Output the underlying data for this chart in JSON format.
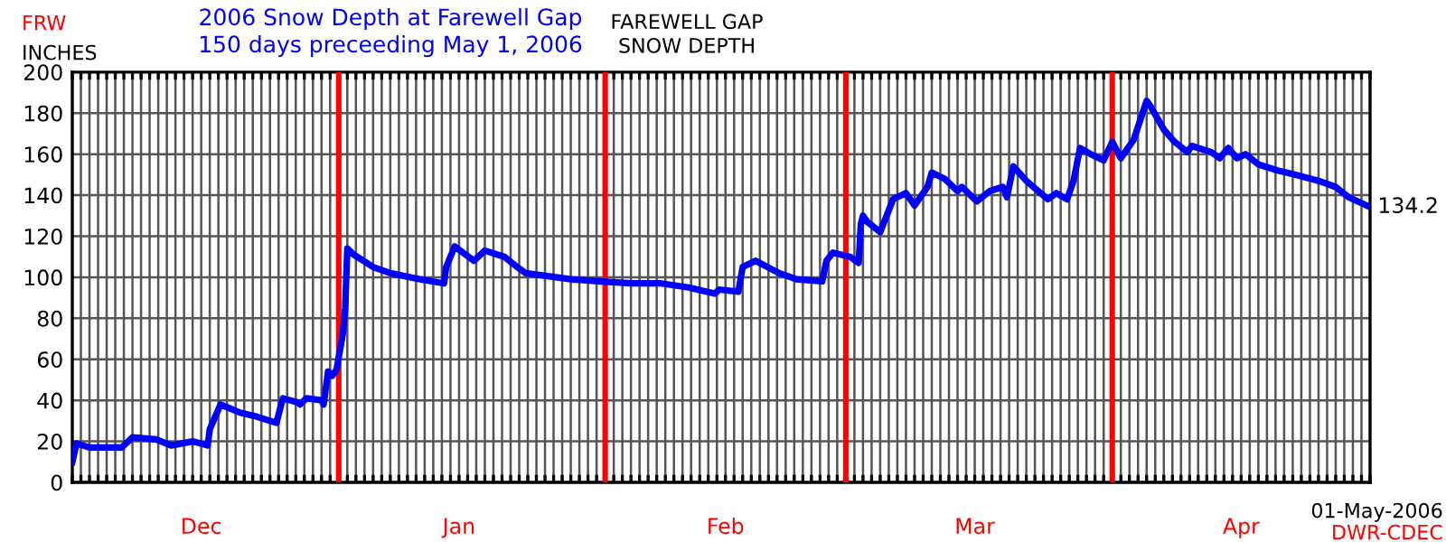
{
  "chart_data": {
    "type": "line",
    "title": "2006 Snow Depth at Farewell Gap",
    "subtitle": "150 days preceeding May 1, 2006",
    "ylabel": "INCHES",
    "annotations": [
      "FRW",
      "FAREWELL GAP\nSNOW DEPTH",
      {
        "text": "134.2",
        "x": "2006-05-01",
        "y": 134.2
      },
      "01-May-2006",
      "DWR-CDEC"
    ],
    "x": [
      "2005-12-01T00:00",
      "2005-12-01T12:00",
      "2005-12-03T00:00",
      "2005-12-06T18:00",
      "2005-12-08T00:00",
      "2005-12-10T18:00",
      "2005-12-12T12:00",
      "2005-12-15T00:00",
      "2005-12-16T18:00",
      "2005-12-17T00:00",
      "2005-12-18T06:00",
      "2005-12-20T12:00",
      "2005-12-22T12:00",
      "2005-12-24T18:00",
      "2005-12-25T12:00",
      "2005-12-27T06:00",
      "2005-12-27T12:00",
      "2005-12-28T06:00",
      "2005-12-30T00:00",
      "2005-12-30T06:00",
      "2005-12-30T18:00",
      "2005-12-31T06:00",
      "2005-12-31T18:00",
      "2006-01-01T12:00",
      "2006-01-01T18:00",
      "2006-01-02T00:00",
      "2006-01-02T18:00",
      "2006-01-05T00:00",
      "2006-01-07T00:00",
      "2006-01-10T12:00",
      "2006-01-13T06:00",
      "2006-01-13T12:00",
      "2006-01-14T12:00",
      "2006-01-16T18:00",
      "2006-01-18T00:00",
      "2006-01-20T06:00",
      "2006-01-21T18:00",
      "2006-01-22T18:00",
      "2006-01-24T12:00",
      "2006-01-28T00:00",
      "2006-01-31T06:00",
      "2006-02-04T00:00",
      "2006-02-07T12:00",
      "2006-02-10T18:00",
      "2006-02-13T18:00",
      "2006-02-14T06:00",
      "2006-02-16T12:00",
      "2006-02-17T00:00",
      "2006-02-18T12:00",
      "2006-02-21T06:00",
      "2006-02-23T06:00",
      "2006-02-26T06:00",
      "2006-02-26T18:00",
      "2006-02-27T12:00",
      "2006-03-01T12:00",
      "2006-03-02T12:00",
      "2006-03-02T18:00",
      "2006-03-03T00:00",
      "2006-03-03T12:00",
      "2006-03-05T00:00",
      "2006-03-06T12:00",
      "2006-03-08T00:00",
      "2006-03-09T00:00",
      "2006-03-10T12:00",
      "2006-03-11T00:00",
      "2006-03-12T12:00",
      "2006-03-14T00:00",
      "2006-03-14T12:00",
      "2006-03-16T06:00",
      "2006-03-17T18:00",
      "2006-03-19T06:00",
      "2006-03-19T18:00",
      "2006-03-20T12:00",
      "2006-03-22T00:00",
      "2006-03-24T12:00",
      "2006-03-25T12:00",
      "2006-03-26T18:00",
      "2006-03-27T12:00",
      "2006-03-28T06:00",
      "2006-03-29T12:00",
      "2006-03-31T00:00",
      "2006-04-01T00:00",
      "2006-04-02T00:00",
      "2006-04-03T12:00",
      "2006-04-05T00:00",
      "2006-04-05T12:00",
      "2006-04-07T00:00",
      "2006-04-08T06:00",
      "2006-04-09T18:00",
      "2006-04-10T06:00",
      "2006-04-12T12:00",
      "2006-04-13T12:00",
      "2006-04-14T12:00",
      "2006-04-15T12:00",
      "2006-04-16T12:00",
      "2006-04-18T00:00",
      "2006-04-20T06:00",
      "2006-04-22T06:00",
      "2006-04-25T00:00",
      "2006-04-27T00:00",
      "2006-04-28T12:00",
      "2006-05-01T00:00"
    ],
    "series": [
      {
        "color": "#0000ff",
        "values": [
          10,
          19,
          17,
          17,
          22,
          21,
          18,
          20,
          18,
          26,
          38,
          34,
          32,
          29,
          41,
          39,
          38,
          41,
          40,
          38,
          54,
          52,
          55,
          73,
          85,
          114,
          111,
          105,
          102,
          99,
          97,
          105,
          115,
          108,
          113,
          110,
          105,
          102,
          101,
          99,
          98,
          97,
          97,
          95,
          92,
          94,
          93,
          105,
          108,
          102,
          99,
          98,
          108,
          112,
          110,
          107,
          126,
          130,
          127,
          122,
          138,
          141,
          135,
          144,
          151,
          148,
          142,
          144,
          137,
          142,
          144,
          139,
          154,
          147,
          138,
          141,
          138,
          147,
          163,
          160,
          157,
          166,
          158,
          167,
          186,
          183,
          172,
          166,
          161,
          164,
          161,
          158,
          163,
          158,
          160,
          155,
          152,
          150,
          147,
          144,
          139,
          134.2
        ]
      }
    ],
    "xlim": [
      "2005-12-01",
      "2006-05-01"
    ],
    "xticks": [
      {
        "value": "2005-12-01",
        "label": null
      },
      {
        "value": "2005-12-02",
        "label": null
      },
      {
        "value": "2005-12-03",
        "label": null
      },
      {
        "value": "2005-12-04",
        "label": null
      },
      {
        "value": "2005-12-05",
        "label": null
      },
      {
        "value": "2005-12-06",
        "label": null
      },
      {
        "value": "2005-12-07",
        "label": null
      },
      {
        "value": "2005-12-08",
        "label": null
      },
      {
        "value": "2005-12-09",
        "label": null
      },
      {
        "value": "2005-12-10",
        "label": null
      },
      {
        "value": "2005-12-11",
        "label": null
      },
      {
        "value": "2005-12-12",
        "label": null
      },
      {
        "value": "2005-12-13",
        "label": null
      },
      {
        "value": "2005-12-14",
        "label": null
      },
      {
        "value": "2005-12-15",
        "label": null
      },
      {
        "value": "2005-12-16",
        "label": "Dec"
      },
      {
        "value": "2005-12-17",
        "label": null
      },
      {
        "value": "2005-12-18",
        "label": null
      },
      {
        "value": "2005-12-19",
        "label": null
      },
      {
        "value": "2005-12-20",
        "label": null
      },
      {
        "value": "2005-12-21",
        "label": null
      },
      {
        "value": "2005-12-22",
        "label": null
      },
      {
        "value": "2005-12-23",
        "label": null
      },
      {
        "value": "2005-12-24",
        "label": null
      },
      {
        "value": "2005-12-25",
        "label": null
      },
      {
        "value": "2005-12-26",
        "label": null
      },
      {
        "value": "2005-12-27",
        "label": null
      },
      {
        "value": "2005-12-28",
        "label": null
      },
      {
        "value": "2005-12-29",
        "label": null
      },
      {
        "value": "2005-12-30",
        "label": null
      },
      {
        "value": "2005-12-31",
        "label": null
      },
      {
        "value": "2006-01-02",
        "label": null
      },
      {
        "value": "2006-01-03",
        "label": null
      },
      {
        "value": "2006-01-04",
        "label": null
      },
      {
        "value": "2006-01-05",
        "label": null
      },
      {
        "value": "2006-01-06",
        "label": null
      },
      {
        "value": "2006-01-07",
        "label": null
      },
      {
        "value": "2006-01-08",
        "label": null
      },
      {
        "value": "2006-01-09",
        "label": null
      },
      {
        "value": "2006-01-10",
        "label": null
      },
      {
        "value": "2006-01-11",
        "label": null
      },
      {
        "value": "2006-01-12",
        "label": null
      },
      {
        "value": "2006-01-13",
        "label": null
      },
      {
        "value": "2006-01-14",
        "label": null
      },
      {
        "value": "2006-01-15",
        "label": "Jan"
      },
      {
        "value": "2006-01-16",
        "label": null
      },
      {
        "value": "2006-01-17",
        "label": null
      },
      {
        "value": "2006-01-18",
        "label": null
      },
      {
        "value": "2006-01-19",
        "label": null
      },
      {
        "value": "2006-01-20",
        "label": null
      },
      {
        "value": "2006-01-21",
        "label": null
      },
      {
        "value": "2006-01-22",
        "label": null
      },
      {
        "value": "2006-01-23",
        "label": null
      },
      {
        "value": "2006-01-24",
        "label": null
      },
      {
        "value": "2006-01-25",
        "label": null
      },
      {
        "value": "2006-01-26",
        "label": null
      },
      {
        "value": "2006-01-27",
        "label": null
      },
      {
        "value": "2006-01-28",
        "label": null
      },
      {
        "value": "2006-01-29",
        "label": null
      },
      {
        "value": "2006-01-30",
        "label": null
      },
      {
        "value": "2006-01-31",
        "label": null
      },
      {
        "value": "2006-02-02",
        "label": null
      },
      {
        "value": "2006-02-03",
        "label": null
      },
      {
        "value": "2006-02-04",
        "label": null
      },
      {
        "value": "2006-02-05",
        "label": null
      },
      {
        "value": "2006-02-06",
        "label": null
      },
      {
        "value": "2006-02-07",
        "label": null
      },
      {
        "value": "2006-02-08",
        "label": null
      },
      {
        "value": "2006-02-09",
        "label": null
      },
      {
        "value": "2006-02-10",
        "label": null
      },
      {
        "value": "2006-02-11",
        "label": null
      },
      {
        "value": "2006-02-12",
        "label": null
      },
      {
        "value": "2006-02-13",
        "label": null
      },
      {
        "value": "2006-02-14",
        "label": null
      },
      {
        "value": "2006-02-15",
        "label": "Feb"
      },
      {
        "value": "2006-02-16",
        "label": null
      },
      {
        "value": "2006-02-17",
        "label": null
      },
      {
        "value": "2006-02-18",
        "label": null
      },
      {
        "value": "2006-02-19",
        "label": null
      },
      {
        "value": "2006-02-20",
        "label": null
      },
      {
        "value": "2006-02-21",
        "label": null
      },
      {
        "value": "2006-02-22",
        "label": null
      },
      {
        "value": "2006-02-23",
        "label": null
      },
      {
        "value": "2006-02-24",
        "label": null
      },
      {
        "value": "2006-02-25",
        "label": null
      },
      {
        "value": "2006-02-26",
        "label": null
      },
      {
        "value": "2006-02-27",
        "label": null
      },
      {
        "value": "2006-02-28",
        "label": null
      },
      {
        "value": "2006-03-02",
        "label": null
      },
      {
        "value": "2006-03-03",
        "label": null
      },
      {
        "value": "2006-03-04",
        "label": null
      },
      {
        "value": "2006-03-05",
        "label": null
      },
      {
        "value": "2006-03-06",
        "label": null
      },
      {
        "value": "2006-03-07",
        "label": null
      },
      {
        "value": "2006-03-08",
        "label": null
      },
      {
        "value": "2006-03-09",
        "label": null
      },
      {
        "value": "2006-03-10",
        "label": null
      },
      {
        "value": "2006-03-11",
        "label": null
      },
      {
        "value": "2006-03-12",
        "label": null
      },
      {
        "value": "2006-03-13",
        "label": null
      },
      {
        "value": "2006-03-14",
        "label": null
      },
      {
        "value": "2006-03-15",
        "label": null
      },
      {
        "value": "2006-03-16",
        "label": "Mar"
      },
      {
        "value": "2006-03-17",
        "label": null
      },
      {
        "value": "2006-03-18",
        "label": null
      },
      {
        "value": "2006-03-19",
        "label": null
      },
      {
        "value": "2006-03-20",
        "label": null
      },
      {
        "value": "2006-03-21",
        "label": null
      },
      {
        "value": "2006-03-22",
        "label": null
      },
      {
        "value": "2006-03-23",
        "label": null
      },
      {
        "value": "2006-03-24",
        "label": null
      },
      {
        "value": "2006-03-25",
        "label": null
      },
      {
        "value": "2006-03-26",
        "label": null
      },
      {
        "value": "2006-03-27",
        "label": null
      },
      {
        "value": "2006-03-28",
        "label": null
      },
      {
        "value": "2006-03-29",
        "label": null
      },
      {
        "value": "2006-03-30",
        "label": null
      },
      {
        "value": "2006-03-31",
        "label": null
      },
      {
        "value": "2006-04-02",
        "label": null
      },
      {
        "value": "2006-04-03",
        "label": null
      },
      {
        "value": "2006-04-04",
        "label": null
      },
      {
        "value": "2006-04-05",
        "label": null
      },
      {
        "value": "2006-04-06",
        "label": null
      },
      {
        "value": "2006-04-07",
        "label": null
      },
      {
        "value": "2006-04-08",
        "label": null
      },
      {
        "value": "2006-04-09",
        "label": null
      },
      {
        "value": "2006-04-10",
        "label": null
      },
      {
        "value": "2006-04-11",
        "label": null
      },
      {
        "value": "2006-04-12",
        "label": null
      },
      {
        "value": "2006-04-13",
        "label": null
      },
      {
        "value": "2006-04-14",
        "label": null
      },
      {
        "value": "2006-04-15",
        "label": null
      },
      {
        "value": "2006-04-16",
        "label": "Apr"
      },
      {
        "value": "2006-04-17",
        "label": null
      },
      {
        "value": "2006-04-18",
        "label": null
      },
      {
        "value": "2006-04-19",
        "label": null
      },
      {
        "value": "2006-04-20",
        "label": null
      },
      {
        "value": "2006-04-21",
        "label": null
      },
      {
        "value": "2006-04-22",
        "label": null
      },
      {
        "value": "2006-04-23",
        "label": null
      },
      {
        "value": "2006-04-24",
        "label": null
      },
      {
        "value": "2006-04-25",
        "label": null
      },
      {
        "value": "2006-04-26",
        "label": null
      },
      {
        "value": "2006-04-27",
        "label": null
      },
      {
        "value": "2006-04-28",
        "label": null
      },
      {
        "value": "2006-04-29",
        "label": null
      },
      {
        "value": "2006-04-30",
        "label": null
      },
      {
        "value": "2006-05-01",
        "label": null
      }
    ],
    "ylim": [
      0,
      200
    ],
    "yticks": [
      0,
      20,
      40,
      60,
      80,
      100,
      120,
      140,
      160,
      180,
      200
    ],
    "ref_lines": [
      {
        "axis": "x",
        "value": "2006-01-01",
        "color": "#ff0000"
      },
      {
        "axis": "x",
        "value": "2006-02-01",
        "color": "#ff0000"
      },
      {
        "axis": "x",
        "value": "2006-03-01",
        "color": "#ff0000"
      },
      {
        "axis": "x",
        "value": "2006-04-01",
        "color": "#ff0000"
      }
    ],
    "grid": true,
    "line_style": "solid"
  }
}
